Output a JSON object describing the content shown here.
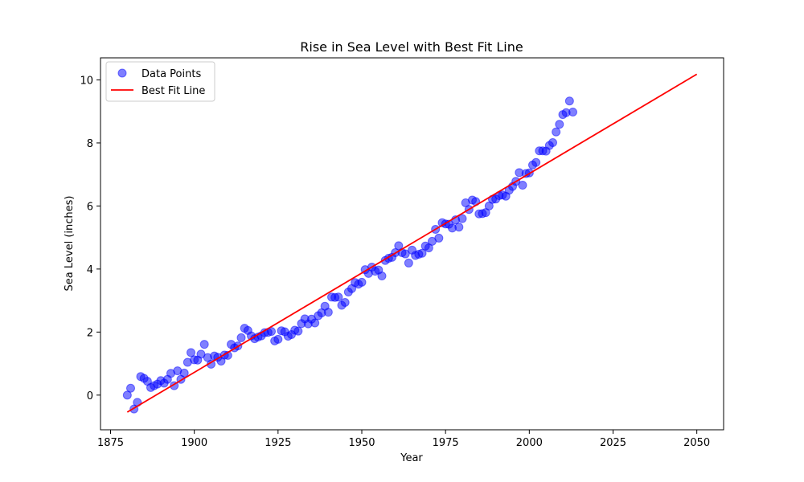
{
  "chart_data": {
    "type": "scatter",
    "title": "Rise in Sea Level with Best Fit Line",
    "xlabel": "Year",
    "ylabel": "Sea Level (inches)",
    "xlim": [
      1872,
      2058
    ],
    "ylim": [
      -1.1,
      10.7
    ],
    "xticks": [
      1875,
      1900,
      1925,
      1950,
      1975,
      2000,
      2025,
      2050
    ],
    "yticks": [
      0,
      2,
      4,
      6,
      8,
      10
    ],
    "grid": false,
    "legend_position": "top-left",
    "colors": {
      "points": "#0000ff",
      "line": "#ff0000"
    },
    "series": [
      {
        "name": "Data Points",
        "kind": "scatter",
        "x": [
          1880,
          1881,
          1882,
          1883,
          1884,
          1885,
          1886,
          1887,
          1888,
          1889,
          1890,
          1891,
          1892,
          1893,
          1894,
          1895,
          1896,
          1897,
          1898,
          1899,
          1900,
          1901,
          1902,
          1903,
          1904,
          1905,
          1906,
          1907,
          1908,
          1909,
          1910,
          1911,
          1912,
          1913,
          1914,
          1915,
          1916,
          1917,
          1918,
          1919,
          1920,
          1921,
          1922,
          1923,
          1924,
          1925,
          1926,
          1927,
          1928,
          1929,
          1930,
          1931,
          1932,
          1933,
          1934,
          1935,
          1936,
          1937,
          1938,
          1939,
          1940,
          1941,
          1942,
          1943,
          1944,
          1945,
          1946,
          1947,
          1948,
          1949,
          1950,
          1951,
          1952,
          1953,
          1954,
          1955,
          1956,
          1957,
          1958,
          1959,
          1960,
          1961,
          1962,
          1963,
          1964,
          1965,
          1966,
          1967,
          1968,
          1969,
          1970,
          1971,
          1972,
          1973,
          1974,
          1975,
          1976,
          1977,
          1978,
          1979,
          1980,
          1981,
          1982,
          1983,
          1984,
          1985,
          1986,
          1987,
          1988,
          1989,
          1990,
          1991,
          1992,
          1993,
          1994,
          1995,
          1996,
          1997,
          1998,
          1999,
          2000,
          2001,
          2002,
          2003,
          2004,
          2005,
          2006,
          2007,
          2008,
          2009,
          2010,
          2011,
          2012,
          2013
        ],
        "y": [
          0.0,
          0.22,
          -0.44,
          -0.23,
          0.59,
          0.53,
          0.44,
          0.24,
          0.3,
          0.35,
          0.46,
          0.38,
          0.5,
          0.69,
          0.3,
          0.77,
          0.5,
          0.7,
          1.04,
          1.35,
          1.12,
          1.11,
          1.3,
          1.61,
          1.19,
          0.98,
          1.24,
          1.2,
          1.08,
          1.27,
          1.26,
          1.61,
          1.5,
          1.56,
          1.82,
          2.12,
          2.05,
          1.88,
          1.79,
          1.84,
          1.88,
          1.98,
          1.99,
          2.02,
          1.72,
          1.77,
          2.04,
          2.01,
          1.87,
          1.92,
          2.06,
          2.03,
          2.27,
          2.42,
          2.26,
          2.41,
          2.29,
          2.52,
          2.61,
          2.82,
          2.63,
          3.11,
          3.1,
          3.11,
          2.85,
          2.94,
          3.27,
          3.38,
          3.57,
          3.52,
          3.58,
          3.98,
          3.86,
          4.06,
          3.93,
          3.97,
          3.78,
          4.27,
          4.34,
          4.37,
          4.52,
          4.74,
          4.52,
          4.48,
          4.19,
          4.6,
          4.43,
          4.47,
          4.5,
          4.73,
          4.67,
          4.88,
          5.26,
          4.98,
          5.47,
          5.43,
          5.42,
          5.3,
          5.56,
          5.33,
          5.6,
          6.1,
          5.89,
          6.19,
          6.14,
          5.75,
          5.76,
          5.79,
          6.0,
          6.21,
          6.22,
          6.33,
          6.35,
          6.31,
          6.5,
          6.62,
          6.78,
          7.06,
          6.66,
          7.03,
          7.05,
          7.3,
          7.38,
          7.75,
          7.75,
          7.74,
          7.92,
          8.01,
          8.35,
          8.59,
          8.9,
          8.96,
          9.33,
          8.98
        ]
      },
      {
        "name": "Best Fit Line",
        "kind": "line",
        "x": [
          1880,
          2050
        ],
        "y": [
          -0.54,
          10.18
        ]
      }
    ]
  }
}
